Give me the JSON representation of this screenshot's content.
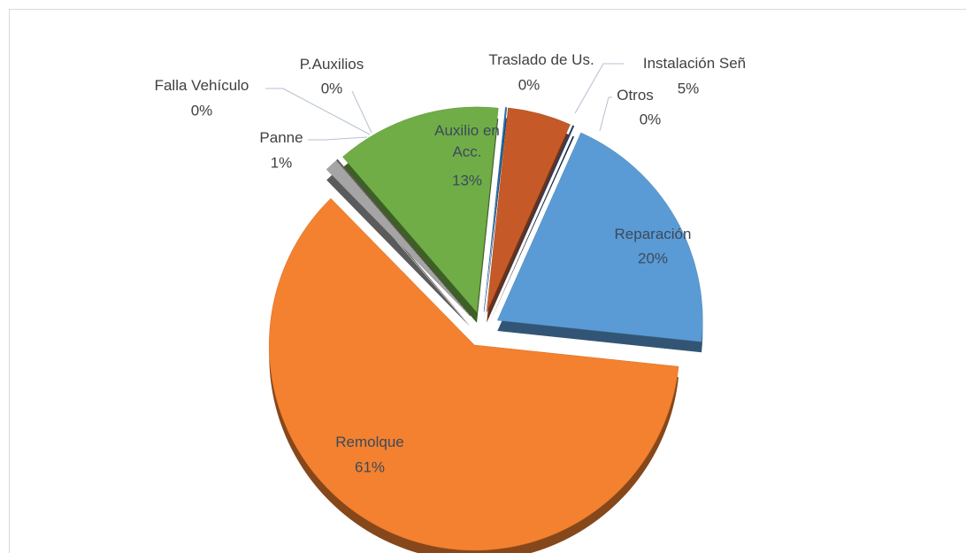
{
  "chart_data": {
    "type": "pie",
    "categories": [
      "Traslado de Us.",
      "Instalación Señ",
      "Otros",
      "Reparación",
      "Remolque",
      "Panne",
      "Falla Vehículo",
      "P.Auxilios",
      "Auxilio en Acc."
    ],
    "values": [
      0,
      5,
      0,
      20,
      61,
      1,
      0,
      0,
      13
    ],
    "value_labels": [
      "0%",
      "5%",
      "0%",
      "20%",
      "61%",
      "1%",
      "0%",
      "0%",
      "13%"
    ],
    "colors": [
      "#2e75b6",
      "#c55a28",
      "#264478",
      "#5b9bd5",
      "#f4812f",
      "#a5a5a5",
      "#9e480e",
      "#636363",
      "#70ad47"
    ]
  }
}
